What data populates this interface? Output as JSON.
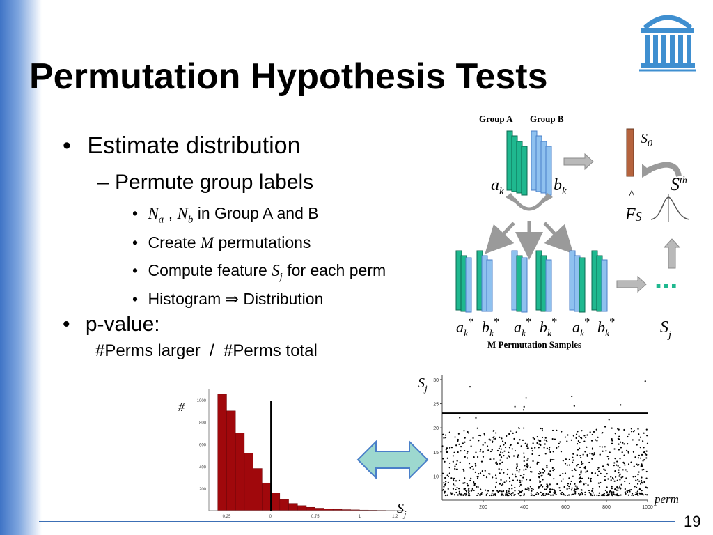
{
  "slide": {
    "title": "Permutation Hypothesis Tests",
    "page_number": "19",
    "bullets": {
      "estimate": "Estimate distribution",
      "permute": "– Permute group labels",
      "na_nb_suffix": " in Group A and B",
      "create_prefix": "Create ",
      "create_suffix": " permutations",
      "compute_prefix": "Compute feature ",
      "compute_suffix": " for each perm",
      "histogram_prefix": "Histogram ",
      "histogram_suffix": " Distribution",
      "pvalue": "p-value:",
      "pvalue_formula": "#Perms larger  /  #Perms total"
    },
    "math": {
      "N": "N",
      "a": "a",
      "b": "b",
      "M": "M",
      "S": "S",
      "j": "j",
      "implies": "⇒"
    }
  },
  "diagram": {
    "group_a": "Group A",
    "group_b": "Group B",
    "ak": "a",
    "bk": "b",
    "k": "k",
    "star": "*",
    "s0": "S",
    "s0_sub": "0",
    "sth": "S",
    "sth_sup": "th",
    "f_hat": "F",
    "f_sub": "S",
    "hat": "^",
    "m_perm": "M Permutation Samples",
    "sj": "S",
    "sj_sub": "j",
    "dots": "..."
  },
  "charts": {
    "histogram": {
      "y_symbol": "#",
      "x_symbol": "S",
      "x_sub": "j",
      "x_ticks": [
        "0.25",
        "0.",
        "0.75",
        "1",
        "1.2"
      ],
      "y_ticks": [
        "1000",
        "800",
        "600",
        "400",
        "200"
      ]
    },
    "scatter": {
      "y_symbol": "S",
      "y_sub": "j",
      "x_label": "perm",
      "x_ticks": [
        "200",
        "400",
        "600",
        "800",
        "1000"
      ],
      "y_ticks": [
        "30",
        "25",
        "20",
        "15",
        "10"
      ]
    },
    "colors": {
      "hist_fill": "#a0080c",
      "group_a": "#1fb88f",
      "group_b": "#8fc1ef",
      "threshold_bar": "#b5633d",
      "arrow_fill": "#9dd8cf",
      "arrow_stroke": "#4a7fc9"
    }
  },
  "chart_data": [
    {
      "type": "bar",
      "title": "",
      "xlabel": "S_j",
      "ylabel": "#",
      "x": [
        0.15,
        0.2,
        0.25,
        0.3,
        0.35,
        0.4,
        0.45,
        0.5,
        0.55,
        0.6,
        0.65,
        0.7,
        0.75,
        0.8,
        0.85,
        0.9,
        0.95,
        1.0,
        1.05,
        1.1,
        1.15,
        1.2
      ],
      "values": [
        0,
        1050,
        900,
        700,
        520,
        380,
        250,
        160,
        100,
        65,
        45,
        30,
        22,
        16,
        12,
        9,
        7,
        5,
        4,
        3,
        2,
        1
      ],
      "ylim": [
        0,
        1100
      ],
      "threshold_x": 0.5
    },
    {
      "type": "scatter",
      "title": "",
      "xlabel": "perm",
      "ylabel": "S_j",
      "xlim": [
        0,
        1000
      ],
      "ylim": [
        5,
        31
      ],
      "threshold_y": 23
    }
  ]
}
